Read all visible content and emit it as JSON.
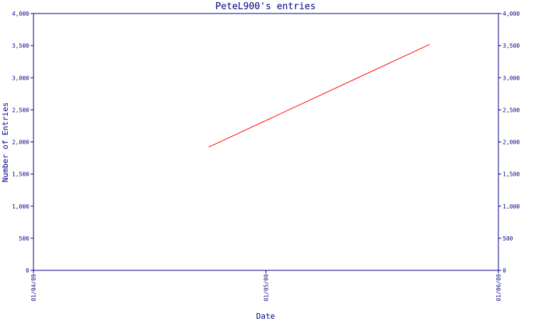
{
  "chart_data": {
    "type": "line",
    "title": "PeteL900's entries",
    "xlabel": "Date",
    "ylabel": "Number of Entries",
    "x_tick_labels": [
      "01/04/09",
      "01/05/09",
      "01/06/09"
    ],
    "y_tick_labels": [
      "0",
      "500",
      "1,000",
      "1,500",
      "2,000",
      "2,500",
      "3,000",
      "3,500",
      "4,000"
    ],
    "y_ticks": [
      0,
      500,
      1000,
      1500,
      2000,
      2500,
      3000,
      3500,
      4000
    ],
    "ylim": [
      0,
      4000
    ],
    "xlim": [
      "2009-04-01",
      "2009-06-01"
    ],
    "series": [
      {
        "x": [
          "2009-04-24",
          "2009-05-23"
        ],
        "values": [
          1920,
          3520
        ]
      }
    ],
    "grid": false,
    "colors": {
      "axis": "#000080",
      "series": "#ff0000",
      "text": "#000080",
      "background": "#ffffff"
    }
  }
}
